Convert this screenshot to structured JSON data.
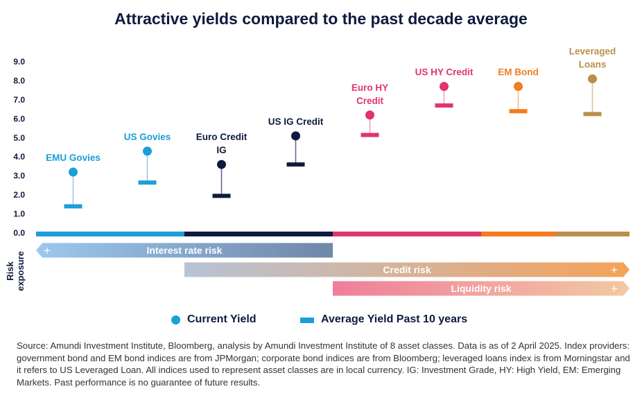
{
  "title": "Attractive yields compared to the past decade average",
  "colors": {
    "navy": "#0e1b3d",
    "blue": "#1b9ed9",
    "pink": "#e0346a",
    "orange": "#f07d1f",
    "gold": "#b9904a",
    "stem_blue": "#8ec9e6",
    "stem_navy": "#5a6480",
    "stem_pink": "#f09bb4",
    "stem_orange": "#f7b98a",
    "stem_gold": "#d9c49c"
  },
  "chart_data": {
    "type": "scatter",
    "title": "Attractive yields compared to the past decade average",
    "ylim": [
      0,
      9
    ],
    "yticks": [
      "0.0",
      "1.0",
      "2.0",
      "3.0",
      "4.0",
      "5.0",
      "6.0",
      "7.0",
      "8.0",
      "9.0"
    ],
    "series": [
      {
        "name": "Current Yield",
        "values": [
          3.2,
          4.3,
          3.6,
          5.1,
          6.2,
          7.7,
          7.7,
          8.1
        ]
      },
      {
        "name": "Average Yield Past 10 years",
        "values": [
          1.4,
          2.65,
          1.95,
          3.6,
          5.15,
          6.7,
          6.4,
          6.25
        ]
      }
    ],
    "categories": [
      {
        "label": [
          "EMU Govies"
        ],
        "color": "blue",
        "stem": "stem_blue"
      },
      {
        "label": [
          "US Govies"
        ],
        "color": "blue",
        "stem": "stem_blue"
      },
      {
        "label": [
          "Euro Credit",
          "IG"
        ],
        "color": "navy",
        "stem": "stem_navy"
      },
      {
        "label": [
          "US IG Credit"
        ],
        "color": "navy",
        "stem": "stem_navy"
      },
      {
        "label": [
          "Euro HY",
          "Credit"
        ],
        "color": "pink",
        "stem": "stem_pink"
      },
      {
        "label": [
          "US HY Credit"
        ],
        "color": "pink",
        "stem": "stem_pink"
      },
      {
        "label": [
          "EM Bond"
        ],
        "color": "orange",
        "stem": "stem_orange"
      },
      {
        "label": [
          "Leveraged",
          "Loans"
        ],
        "color": "gold",
        "stem": "stem_gold"
      }
    ],
    "axis_band": [
      {
        "color": "#1b9ed9",
        "span": [
          0,
          2
        ]
      },
      {
        "color": "#0e1b3d",
        "span": [
          2,
          4
        ]
      },
      {
        "color": "#e0346a",
        "span": [
          4,
          6
        ]
      },
      {
        "color": "#f07d1f",
        "span": [
          6,
          7
        ]
      },
      {
        "color": "#b9904a",
        "span": [
          7,
          8
        ]
      }
    ],
    "risk_label": "Risk exposure",
    "risks": [
      {
        "label": "Interest rate risk",
        "span": [
          0,
          4
        ],
        "plus": "+",
        "plus_side": "left",
        "from": "#9cc8ef",
        "to": "#6f87a8",
        "direction": "left"
      },
      {
        "label": "Credit risk",
        "span": [
          2,
          8
        ],
        "plus": "+",
        "plus_side": "right",
        "from": "#b7c3d6",
        "to": "#f5a25a",
        "direction": "right"
      },
      {
        "label": "Liquidity risk",
        "span": [
          4,
          8
        ],
        "plus": "+",
        "plus_side": "right",
        "from": "#ef7e9a",
        "to": "#f3c9a3",
        "direction": "right"
      }
    ]
  },
  "legend": {
    "current": "Current Yield",
    "average": "Average Yield Past 10 years"
  },
  "source": "Source: Amundi Investment Institute, Bloomberg, analysis by Amundi Investment Institute of 8 asset classes. Data is as of 2 April 2025. Index providers: government bond and EM bond indices are from JPMorgan; corporate bond indices are from Bloomberg; leveraged loans index is from Morningstar and it refers to US Leveraged Loan. All indices used to represent asset classes are in local currency. IG: Investment Grade, HY: High Yield, EM: Emerging Markets. Past performance is no guarantee of future results."
}
